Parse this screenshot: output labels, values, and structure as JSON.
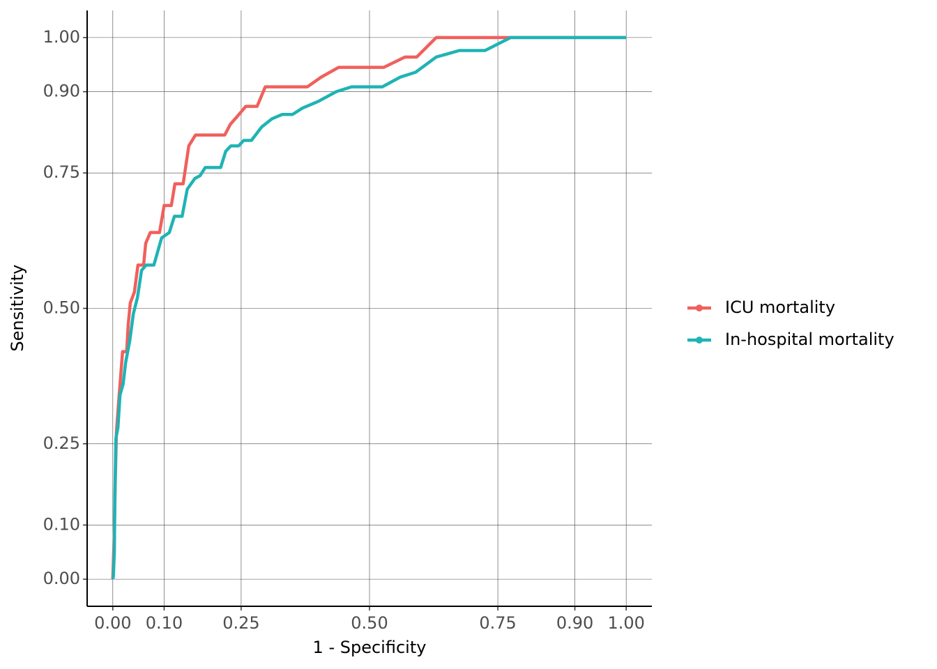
{
  "chart_data": {
    "type": "line",
    "x_label": "1 - Specificity",
    "y_label": "Sensitivity",
    "xlim": [
      -0.05,
      1.05
    ],
    "ylim": [
      -0.05,
      1.05
    ],
    "xticks": [
      {
        "value": 0,
        "label": "0.00"
      },
      {
        "value": 0.1,
        "label": "0.10"
      },
      0.25,
      {
        "value": 0.5,
        "label": "0.50"
      },
      0.75,
      {
        "value": 0.9,
        "label": "0.90"
      },
      {
        "value": 1,
        "label": "1.00"
      }
    ],
    "yticks": [
      {
        "value": 0,
        "label": "0.00"
      },
      {
        "value": 0.1,
        "label": "0.10"
      },
      0.25,
      {
        "value": 0.5,
        "label": "0.50"
      },
      0.75,
      {
        "value": 0.9,
        "label": "0.90"
      },
      {
        "value": 1,
        "label": "1.00"
      }
    ],
    "grid": true,
    "legend": "right",
    "series": [
      {
        "name": "ICU mortality",
        "color": "#f0605c",
        "x": [
          0,
          0.003,
          0.005,
          0.007,
          0.01,
          0.012,
          0.019,
          0.027,
          0.03,
          0.034,
          0.042,
          0.049,
          0.06,
          0.064,
          0.073,
          0.091,
          0.1,
          0.114,
          0.121,
          0.137,
          0.148,
          0.161,
          0.218,
          0.229,
          0.243,
          0.259,
          0.281,
          0.297,
          0.379,
          0.406,
          0.44,
          0.528,
          0.569,
          0.592,
          0.63,
          1.0
        ],
        "values": [
          0,
          0.09,
          0.19,
          0.27,
          0.31,
          0.335,
          0.42,
          0.42,
          0.47,
          0.51,
          0.53,
          0.58,
          0.58,
          0.62,
          0.64,
          0.64,
          0.69,
          0.69,
          0.73,
          0.73,
          0.8,
          0.82,
          0.82,
          0.84,
          0.855,
          0.873,
          0.873,
          0.909,
          0.909,
          0.927,
          0.945,
          0.945,
          0.964,
          0.964,
          1.0,
          1.0
        ]
      },
      {
        "name": "In-hospital mortality",
        "color": "#1fb3b5",
        "x": [
          0,
          0.001,
          0.003,
          0.004,
          0.006,
          0.01,
          0.014,
          0.02,
          0.025,
          0.033,
          0.04,
          0.048,
          0.056,
          0.065,
          0.08,
          0.095,
          0.11,
          0.12,
          0.135,
          0.145,
          0.16,
          0.17,
          0.18,
          0.21,
          0.22,
          0.23,
          0.245,
          0.255,
          0.27,
          0.29,
          0.31,
          0.33,
          0.35,
          0.37,
          0.4,
          0.435,
          0.465,
          0.525,
          0.56,
          0.59,
          0.63,
          0.675,
          0.725,
          0.775,
          1.0
        ],
        "values": [
          0,
          0.005,
          0.05,
          0.15,
          0.26,
          0.28,
          0.34,
          0.36,
          0.4,
          0.44,
          0.49,
          0.52,
          0.57,
          0.58,
          0.58,
          0.63,
          0.64,
          0.67,
          0.67,
          0.72,
          0.74,
          0.745,
          0.76,
          0.76,
          0.79,
          0.8,
          0.8,
          0.81,
          0.81,
          0.835,
          0.85,
          0.858,
          0.858,
          0.87,
          0.882,
          0.9,
          0.909,
          0.909,
          0.927,
          0.936,
          0.964,
          0.976,
          0.976,
          1.0,
          1.0
        ]
      }
    ]
  }
}
